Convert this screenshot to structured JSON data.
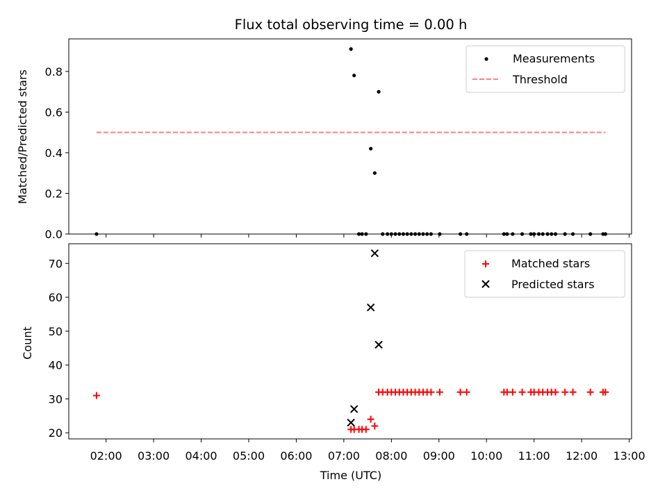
{
  "chart_data": [
    {
      "type": "scatter",
      "title": "Flux total observing time = 0.00 h",
      "xlabel": "",
      "ylabel": "Matched/Predicted stars",
      "xlim": [
        "01:13",
        "13:03"
      ],
      "ylim": [
        0,
        0.96
      ],
      "yticks": [
        0.0,
        0.2,
        0.4,
        0.6,
        0.8
      ],
      "ytick_labels": [
        "0.0",
        "0.2",
        "0.4",
        "0.6",
        "0.8"
      ],
      "legend_position": "upper right",
      "grid": false,
      "series": [
        {
          "name": "Measurements",
          "kind": "scatter",
          "marker": "dot",
          "color": "#000000",
          "points": [
            [
              "01:48",
              0.0
            ],
            [
              "07:09",
              0.91
            ],
            [
              "07:13",
              0.78
            ],
            [
              "07:19",
              0.0
            ],
            [
              "07:23",
              0.0
            ],
            [
              "07:28",
              0.0
            ],
            [
              "07:34",
              0.42
            ],
            [
              "07:39",
              0.3
            ],
            [
              "07:44",
              0.7
            ],
            [
              "07:49",
              0.0
            ],
            [
              "07:55",
              0.0
            ],
            [
              "08:00",
              0.0
            ],
            [
              "08:05",
              0.0
            ],
            [
              "08:10",
              0.0
            ],
            [
              "08:15",
              0.0
            ],
            [
              "08:20",
              0.0
            ],
            [
              "08:25",
              0.0
            ],
            [
              "08:30",
              0.0
            ],
            [
              "08:35",
              0.0
            ],
            [
              "08:40",
              0.0
            ],
            [
              "08:45",
              0.0
            ],
            [
              "08:50",
              0.0
            ],
            [
              "09:01",
              0.0
            ],
            [
              "09:27",
              0.0
            ],
            [
              "09:35",
              0.0
            ],
            [
              "10:22",
              0.0
            ],
            [
              "10:26",
              0.0
            ],
            [
              "10:33",
              0.0
            ],
            [
              "10:45",
              0.0
            ],
            [
              "10:56",
              0.0
            ],
            [
              "11:00",
              0.0
            ],
            [
              "11:06",
              0.0
            ],
            [
              "11:11",
              0.0
            ],
            [
              "11:17",
              0.0
            ],
            [
              "11:22",
              0.0
            ],
            [
              "11:27",
              0.0
            ],
            [
              "11:39",
              0.0
            ],
            [
              "11:49",
              0.0
            ],
            [
              "12:11",
              0.0
            ],
            [
              "12:27",
              0.0
            ],
            [
              "12:30",
              0.0
            ]
          ]
        },
        {
          "name": "Threshold",
          "kind": "line",
          "style": "dashed",
          "color": "#ff7f7f",
          "x": [
            "01:48",
            "12:30"
          ],
          "values": [
            0.5,
            0.5
          ]
        }
      ]
    },
    {
      "type": "scatter",
      "title": "",
      "xlabel": "Time (UTC)",
      "ylabel": "Count",
      "xlim": [
        "01:13",
        "13:03"
      ],
      "ylim": [
        18.2,
        75.8
      ],
      "xticks": [
        "02:00",
        "03:00",
        "04:00",
        "05:00",
        "06:00",
        "07:00",
        "08:00",
        "09:00",
        "10:00",
        "11:00",
        "12:00",
        "13:00"
      ],
      "yticks": [
        20,
        30,
        40,
        50,
        60,
        70
      ],
      "ytick_labels": [
        "20",
        "30",
        "40",
        "50",
        "60",
        "70"
      ],
      "legend_position": "upper right",
      "grid": false,
      "series": [
        {
          "name": "Matched stars",
          "kind": "scatter",
          "marker": "plus",
          "color": "#ff0000",
          "points": [
            [
              "01:48",
              31
            ],
            [
              "07:09",
              21
            ],
            [
              "07:13",
              21
            ],
            [
              "07:19",
              21
            ],
            [
              "07:23",
              21
            ],
            [
              "07:28",
              21
            ],
            [
              "07:34",
              24
            ],
            [
              "07:39",
              22
            ],
            [
              "07:44",
              32
            ],
            [
              "07:49",
              32
            ],
            [
              "07:55",
              32
            ],
            [
              "08:00",
              32
            ],
            [
              "08:05",
              32
            ],
            [
              "08:10",
              32
            ],
            [
              "08:15",
              32
            ],
            [
              "08:20",
              32
            ],
            [
              "08:25",
              32
            ],
            [
              "08:30",
              32
            ],
            [
              "08:35",
              32
            ],
            [
              "08:40",
              32
            ],
            [
              "08:45",
              32
            ],
            [
              "08:50",
              32
            ],
            [
              "09:01",
              32
            ],
            [
              "09:27",
              32
            ],
            [
              "09:35",
              32
            ],
            [
              "10:22",
              32
            ],
            [
              "10:26",
              32
            ],
            [
              "10:33",
              32
            ],
            [
              "10:45",
              32
            ],
            [
              "10:56",
              32
            ],
            [
              "11:00",
              32
            ],
            [
              "11:06",
              32
            ],
            [
              "11:11",
              32
            ],
            [
              "11:17",
              32
            ],
            [
              "11:22",
              32
            ],
            [
              "11:27",
              32
            ],
            [
              "11:39",
              32
            ],
            [
              "11:49",
              32
            ],
            [
              "12:11",
              32
            ],
            [
              "12:27",
              32
            ],
            [
              "12:30",
              32
            ]
          ]
        },
        {
          "name": "Predicted stars",
          "kind": "scatter",
          "marker": "x",
          "color": "#000000",
          "points": [
            [
              "07:09",
              23
            ],
            [
              "07:13",
              27
            ],
            [
              "07:34",
              57
            ],
            [
              "07:39",
              73
            ],
            [
              "07:44",
              46
            ]
          ]
        }
      ]
    }
  ]
}
